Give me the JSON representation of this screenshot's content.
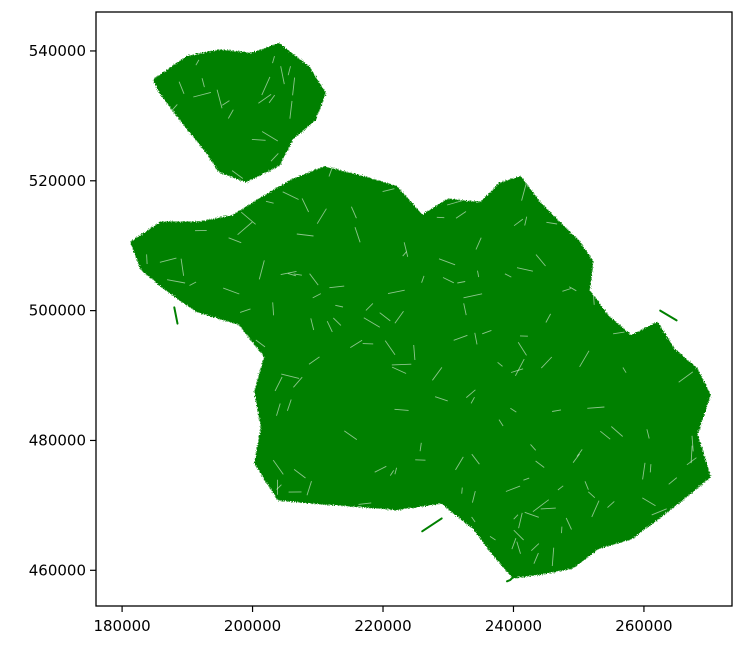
{
  "chart_data": {
    "type": "map",
    "title": "",
    "xlabel": "",
    "ylabel": "",
    "xlim": [
      176000,
      273500
    ],
    "ylim": [
      454500,
      546000
    ],
    "x_ticks": [
      180000,
      200000,
      220000,
      240000,
      260000
    ],
    "y_ticks": [
      460000,
      480000,
      500000,
      520000,
      540000
    ],
    "x_tick_labels": [
      "180000",
      "200000",
      "220000",
      "240000",
      "260000"
    ],
    "y_tick_labels": [
      "460000",
      "480000",
      "500000",
      "520000",
      "540000"
    ],
    "grid": false,
    "legend": "none",
    "series": [
      {
        "geometry": "road-network-lines",
        "color": "#008000",
        "regions": [
          {
            "part": "north-lobe",
            "outline": [
              [
                185000,
                535500
              ],
              [
                190000,
                539000
              ],
              [
                195000,
                540000
              ],
              [
                200000,
                539500
              ],
              [
                204000,
                541000
              ],
              [
                208500,
                537500
              ],
              [
                211000,
                533500
              ],
              [
                209500,
                529500
              ],
              [
                206000,
                526500
              ],
              [
                204000,
                522500
              ],
              [
                199000,
                520000
              ],
              [
                195000,
                521500
              ],
              [
                193000,
                524500
              ],
              [
                189000,
                529500
              ],
              [
                186000,
                533500
              ]
            ]
          },
          {
            "part": "main-body",
            "outline": [
              [
                181500,
                510500
              ],
              [
                186000,
                513500
              ],
              [
                192000,
                513500
              ],
              [
                197000,
                514500
              ],
              [
                201000,
                517000
              ],
              [
                206000,
                520000
              ],
              [
                211000,
                522000
              ],
              [
                217000,
                520500
              ],
              [
                222000,
                519000
              ],
              [
                226000,
                514500
              ],
              [
                230000,
                517000
              ],
              [
                235000,
                516500
              ],
              [
                238000,
                519500
              ],
              [
                241000,
                520500
              ],
              [
                244000,
                516500
              ],
              [
                247000,
                513500
              ],
              [
                250000,
                510500
              ],
              [
                252000,
                507500
              ],
              [
                251500,
                503000
              ],
              [
                254500,
                499000
              ],
              [
                258000,
                496000
              ],
              [
                262000,
                498000
              ],
              [
                264500,
                494000
              ],
              [
                268000,
                491000
              ],
              [
                270000,
                487000
              ],
              [
                268000,
                481000
              ],
              [
                270000,
                474500
              ],
              [
                266500,
                471500
              ],
              [
                262000,
                468000
              ],
              [
                258000,
                465000
              ],
              [
                253000,
                463500
              ],
              [
                249000,
                460500
              ],
              [
                244000,
                459500
              ],
              [
                240000,
                459000
              ],
              [
                237000,
                462500
              ],
              [
                234000,
                466500
              ],
              [
                229000,
                470500
              ],
              [
                222000,
                469500
              ],
              [
                216000,
                470000
              ],
              [
                209000,
                470500
              ],
              [
                204000,
                471000
              ],
              [
                200500,
                476500
              ],
              [
                201500,
                482000
              ],
              [
                200500,
                487500
              ],
              [
                202000,
                493000
              ],
              [
                198000,
                498000
              ],
              [
                191500,
                500000
              ],
              [
                186500,
                503500
              ],
              [
                183000,
                506500
              ]
            ]
          }
        ],
        "features": [
          {
            "kind": "tail",
            "coords": [
              [
                181500,
                510500
              ],
              [
                184500,
                511000
              ],
              [
                187000,
                510000
              ]
            ]
          },
          {
            "kind": "tail",
            "coords": [
              [
                240500,
                459500
              ],
              [
                239500,
                458500
              ],
              [
                239000,
                458300
              ]
            ]
          },
          {
            "kind": "tail",
            "coords": [
              [
                265000,
                498500
              ],
              [
                262500,
                500000
              ]
            ]
          },
          {
            "kind": "tail",
            "coords": [
              [
                188000,
                500500
              ],
              [
                188500,
                498000
              ]
            ]
          },
          {
            "kind": "tail",
            "coords": [
              [
                226000,
                466000
              ],
              [
                229000,
                468000
              ]
            ]
          },
          {
            "kind": "tail",
            "coords": [
              [
                249500,
                503500
              ],
              [
                246000,
                505000
              ]
            ]
          }
        ]
      }
    ]
  }
}
